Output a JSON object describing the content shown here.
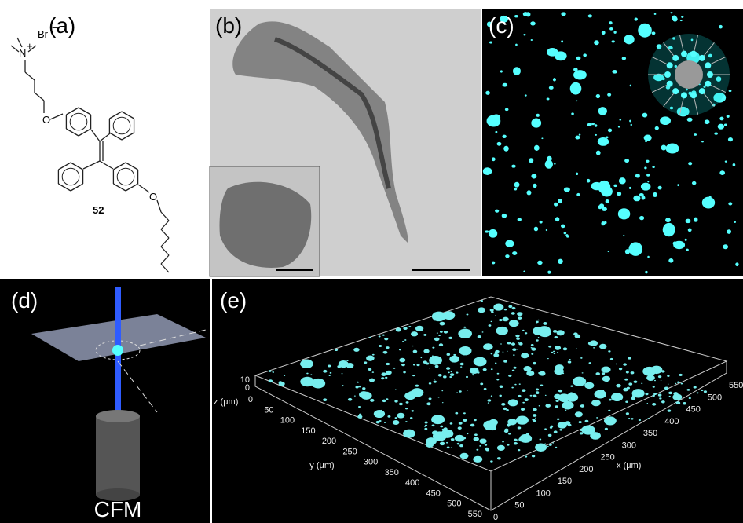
{
  "panels": {
    "a": {
      "label": "(a)",
      "amine": "N",
      "charge": "+",
      "counterion": "Br",
      "counterion_charge": "−",
      "oxygen_top": "O",
      "oxygen_bottom": "O",
      "compound": "52"
    },
    "b": {
      "label": "(b)"
    },
    "c": {
      "label": "(c)"
    },
    "d": {
      "label": "(d)",
      "caption": "CFM"
    },
    "e": {
      "label": "(e)",
      "z_label": "z (μm)",
      "z_ticks": [
        "0",
        "10"
      ],
      "y_label": "y (μm)",
      "y_ticks": [
        "0",
        "50",
        "100",
        "150",
        "200",
        "250",
        "300",
        "350",
        "400",
        "450",
        "500",
        "550"
      ],
      "x_label": "x (μm)",
      "x_ticks": [
        "0",
        "50",
        "100",
        "150",
        "200",
        "250",
        "300",
        "350",
        "400",
        "450",
        "500",
        "550"
      ]
    }
  }
}
